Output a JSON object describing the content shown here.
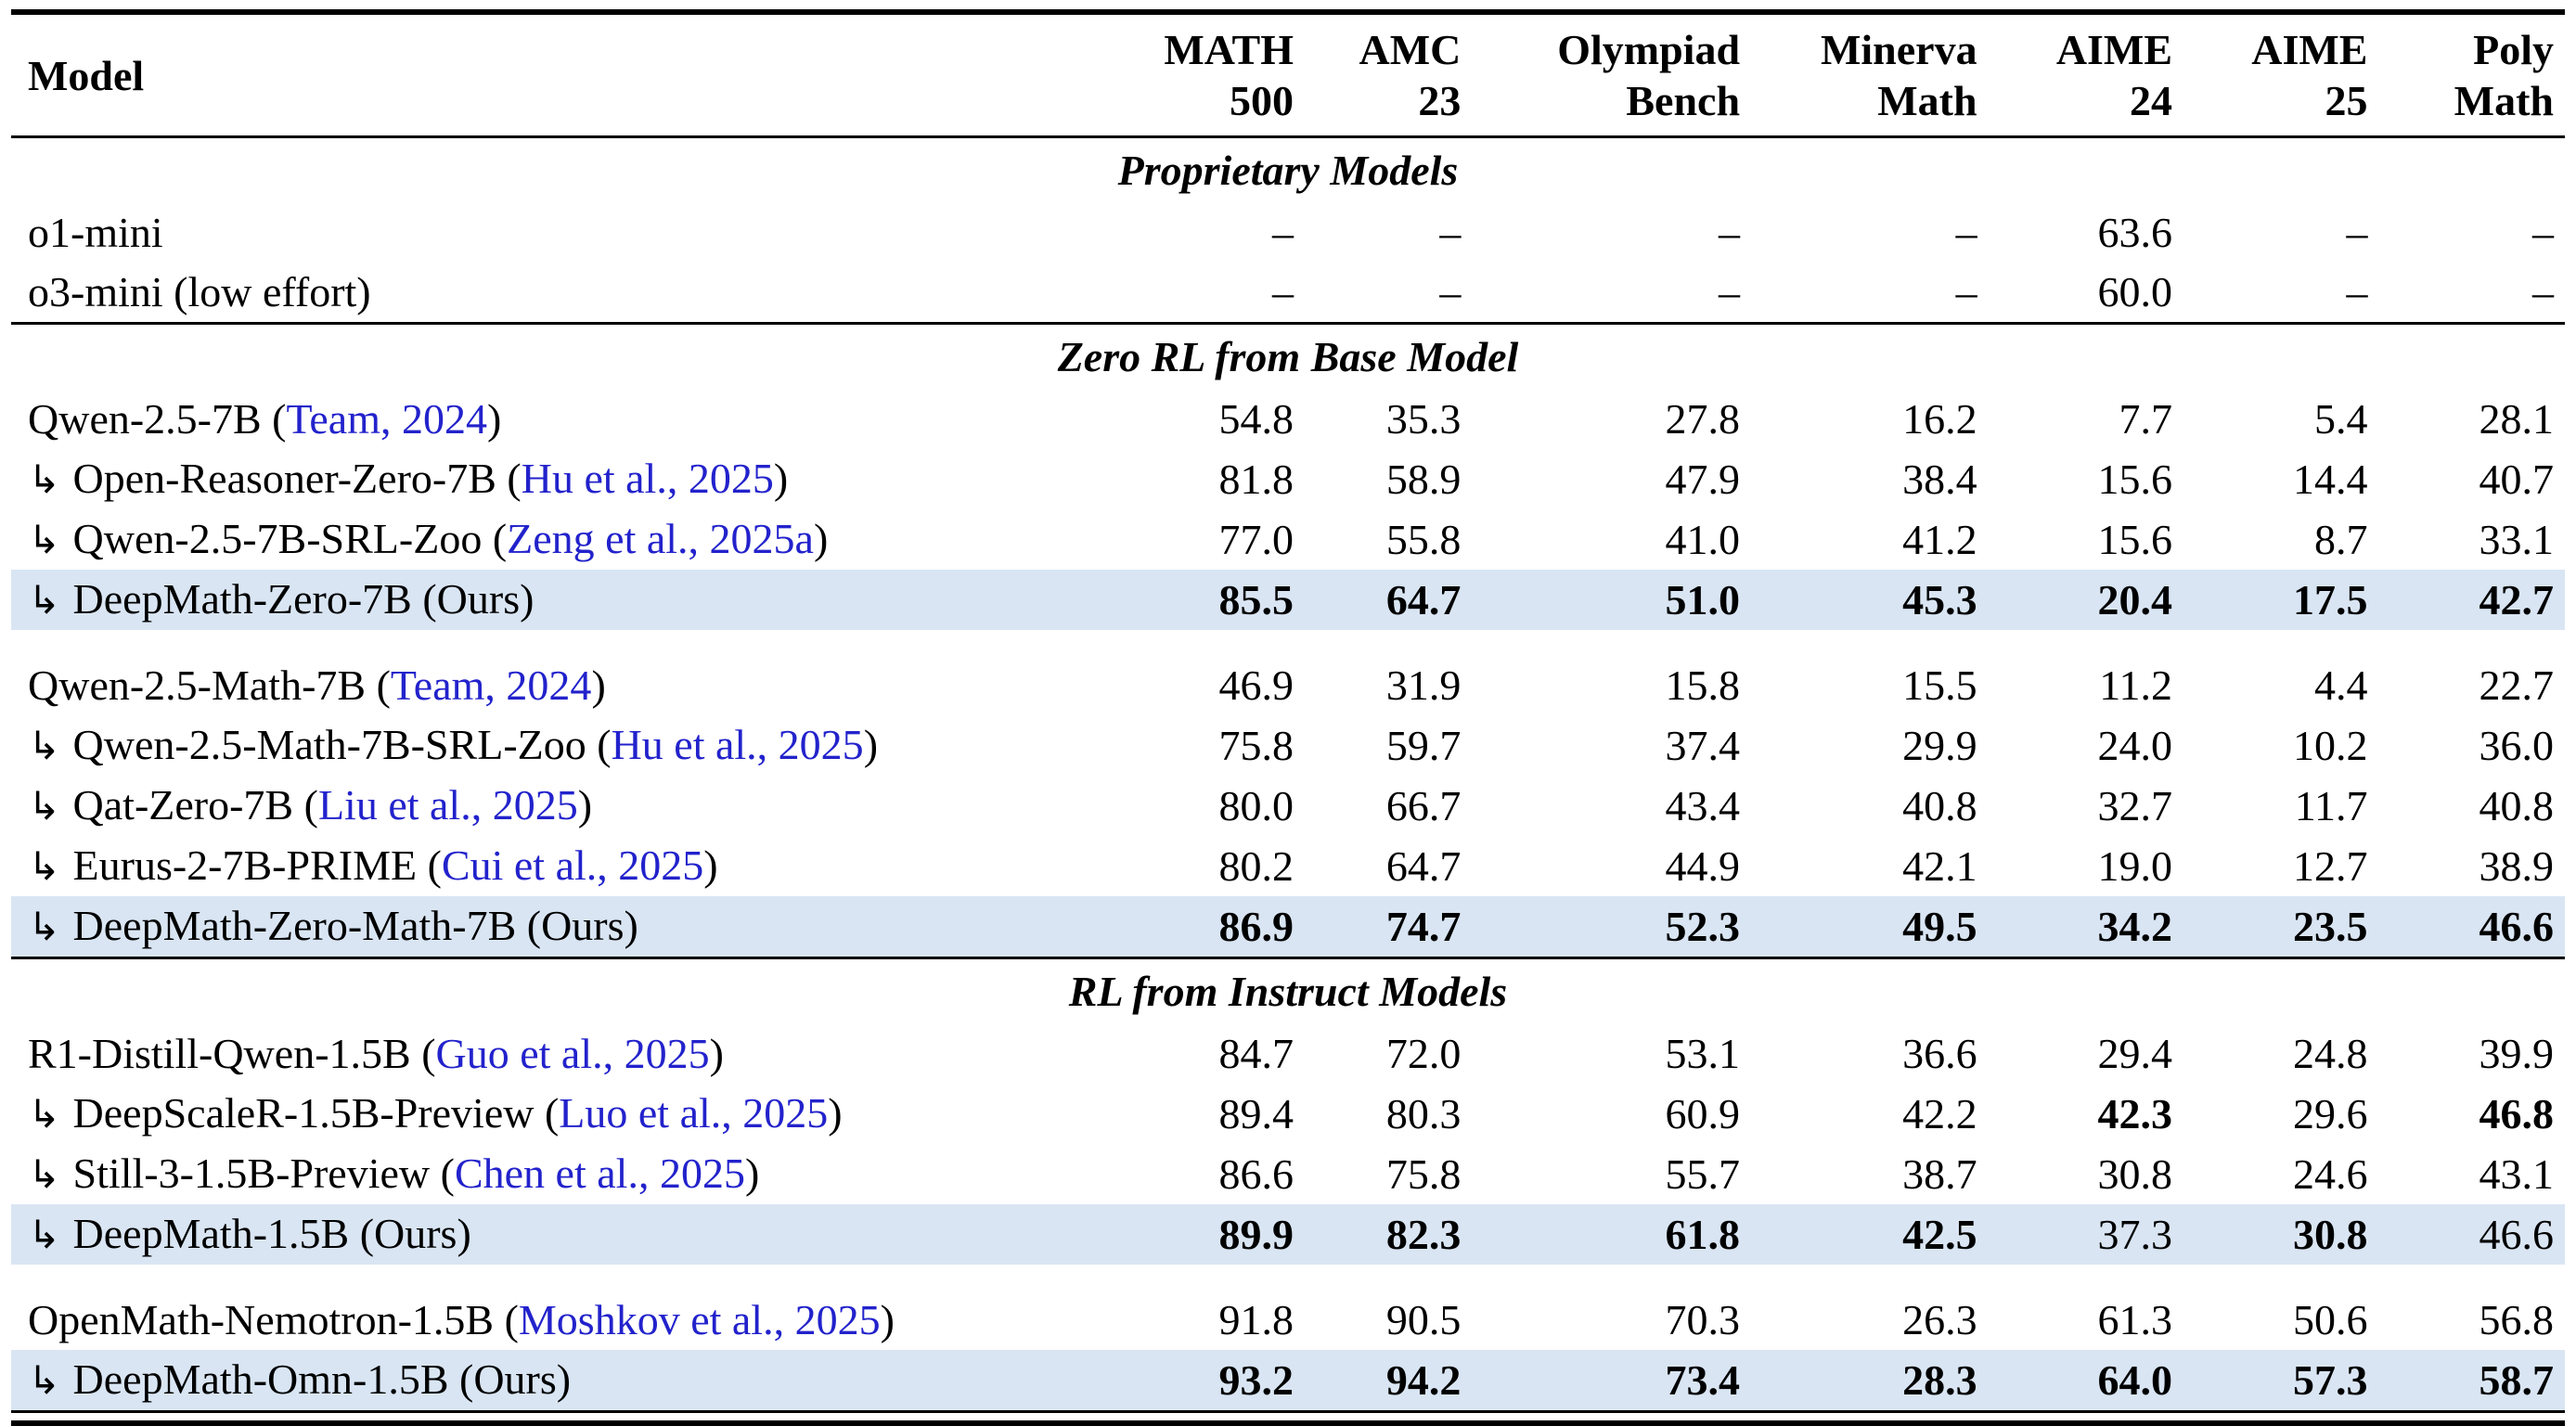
{
  "colors": {
    "background": "#ffffff",
    "text": "#000000",
    "rule": "#000000",
    "highlight_row": "#d9e5f3",
    "citation_link": "#2222cc"
  },
  "icons": {
    "indent_arrow": "↳"
  },
  "header": {
    "model_label": "Model",
    "columns": [
      {
        "line1": "MATH",
        "line2": "500"
      },
      {
        "line1": "AMC",
        "line2": "23"
      },
      {
        "line1": "Olympiad",
        "line2": "Bench"
      },
      {
        "line1": "Minerva",
        "line2": "Math"
      },
      {
        "line1": "AIME",
        "line2": "24"
      },
      {
        "line1": "AIME",
        "line2": "25"
      },
      {
        "line1": "Poly",
        "line2": "Math"
      }
    ]
  },
  "sections": [
    {
      "title": "Proprietary Models",
      "groups": [
        {
          "rows": [
            {
              "indent": false,
              "highlight": false,
              "model": [
                {
                  "text": "o1-mini"
                }
              ],
              "values": [
                {
                  "v": "–"
                },
                {
                  "v": "–"
                },
                {
                  "v": "–"
                },
                {
                  "v": "–"
                },
                {
                  "v": "63.6"
                },
                {
                  "v": "–"
                },
                {
                  "v": "–"
                }
              ]
            },
            {
              "indent": false,
              "highlight": false,
              "model": [
                {
                  "text": "o3-mini (low effort)"
                }
              ],
              "values": [
                {
                  "v": "–"
                },
                {
                  "v": "–"
                },
                {
                  "v": "–"
                },
                {
                  "v": "–"
                },
                {
                  "v": "60.0"
                },
                {
                  "v": "–"
                },
                {
                  "v": "–"
                }
              ]
            }
          ]
        }
      ]
    },
    {
      "title": "Zero RL from Base Model",
      "groups": [
        {
          "rows": [
            {
              "indent": false,
              "highlight": false,
              "model": [
                {
                  "text": "Qwen-2.5-7B ("
                },
                {
                  "text": "Team, 2024",
                  "link": true
                },
                {
                  "text": ")"
                }
              ],
              "values": [
                {
                  "v": "54.8"
                },
                {
                  "v": "35.3"
                },
                {
                  "v": "27.8"
                },
                {
                  "v": "16.2"
                },
                {
                  "v": "7.7"
                },
                {
                  "v": "5.4"
                },
                {
                  "v": "28.1"
                }
              ]
            },
            {
              "indent": true,
              "highlight": false,
              "model": [
                {
                  "text": "Open-Reasoner-Zero-7B ("
                },
                {
                  "text": "Hu et al., 2025",
                  "link": true
                },
                {
                  "text": ")"
                }
              ],
              "values": [
                {
                  "v": "81.8"
                },
                {
                  "v": "58.9"
                },
                {
                  "v": "47.9"
                },
                {
                  "v": "38.4"
                },
                {
                  "v": "15.6"
                },
                {
                  "v": "14.4"
                },
                {
                  "v": "40.7"
                }
              ]
            },
            {
              "indent": true,
              "highlight": false,
              "model": [
                {
                  "text": "Qwen-2.5-7B-SRL-Zoo ("
                },
                {
                  "text": "Zeng et al., 2025a",
                  "link": true
                },
                {
                  "text": ")"
                }
              ],
              "values": [
                {
                  "v": "77.0"
                },
                {
                  "v": "55.8"
                },
                {
                  "v": "41.0"
                },
                {
                  "v": "41.2"
                },
                {
                  "v": "15.6"
                },
                {
                  "v": "8.7"
                },
                {
                  "v": "33.1"
                }
              ]
            },
            {
              "indent": true,
              "highlight": true,
              "model": [
                {
                  "text": "DeepMath-Zero-7B (Ours)"
                }
              ],
              "values": [
                {
                  "v": "85.5",
                  "b": true
                },
                {
                  "v": "64.7",
                  "b": true
                },
                {
                  "v": "51.0",
                  "b": true
                },
                {
                  "v": "45.3",
                  "b": true
                },
                {
                  "v": "20.4",
                  "b": true
                },
                {
                  "v": "17.5",
                  "b": true
                },
                {
                  "v": "42.7",
                  "b": true
                }
              ]
            }
          ]
        },
        {
          "rows": [
            {
              "indent": false,
              "highlight": false,
              "model": [
                {
                  "text": "Qwen-2.5-Math-7B ("
                },
                {
                  "text": "Team, 2024",
                  "link": true
                },
                {
                  "text": ")"
                }
              ],
              "values": [
                {
                  "v": "46.9"
                },
                {
                  "v": "31.9"
                },
                {
                  "v": "15.8"
                },
                {
                  "v": "15.5"
                },
                {
                  "v": "11.2"
                },
                {
                  "v": "4.4"
                },
                {
                  "v": "22.7"
                }
              ]
            },
            {
              "indent": true,
              "highlight": false,
              "model": [
                {
                  "text": "Qwen-2.5-Math-7B-SRL-Zoo ("
                },
                {
                  "text": "Hu et al., 2025",
                  "link": true
                },
                {
                  "text": ")"
                }
              ],
              "values": [
                {
                  "v": "75.8"
                },
                {
                  "v": "59.7"
                },
                {
                  "v": "37.4"
                },
                {
                  "v": "29.9"
                },
                {
                  "v": "24.0"
                },
                {
                  "v": "10.2"
                },
                {
                  "v": "36.0"
                }
              ]
            },
            {
              "indent": true,
              "highlight": false,
              "model": [
                {
                  "text": "Qat-Zero-7B ("
                },
                {
                  "text": "Liu et al., 2025",
                  "link": true
                },
                {
                  "text": ")"
                }
              ],
              "values": [
                {
                  "v": "80.0"
                },
                {
                  "v": "66.7"
                },
                {
                  "v": "43.4"
                },
                {
                  "v": "40.8"
                },
                {
                  "v": "32.7"
                },
                {
                  "v": "11.7"
                },
                {
                  "v": "40.8"
                }
              ]
            },
            {
              "indent": true,
              "highlight": false,
              "model": [
                {
                  "text": "Eurus-2-7B-PRIME ("
                },
                {
                  "text": "Cui et al., 2025",
                  "link": true
                },
                {
                  "text": ")"
                }
              ],
              "values": [
                {
                  "v": "80.2"
                },
                {
                  "v": "64.7"
                },
                {
                  "v": "44.9"
                },
                {
                  "v": "42.1"
                },
                {
                  "v": "19.0"
                },
                {
                  "v": "12.7"
                },
                {
                  "v": "38.9"
                }
              ]
            },
            {
              "indent": true,
              "highlight": true,
              "model": [
                {
                  "text": "DeepMath-Zero-Math-7B (Ours)"
                }
              ],
              "values": [
                {
                  "v": "86.9",
                  "b": true
                },
                {
                  "v": "74.7",
                  "b": true
                },
                {
                  "v": "52.3",
                  "b": true
                },
                {
                  "v": "49.5",
                  "b": true
                },
                {
                  "v": "34.2",
                  "b": true
                },
                {
                  "v": "23.5",
                  "b": true
                },
                {
                  "v": "46.6",
                  "b": true
                }
              ]
            }
          ]
        }
      ]
    },
    {
      "title": "RL from Instruct Models",
      "groups": [
        {
          "rows": [
            {
              "indent": false,
              "highlight": false,
              "model": [
                {
                  "text": "R1-Distill-Qwen-1.5B ("
                },
                {
                  "text": "Guo et al., 2025",
                  "link": true
                },
                {
                  "text": ")"
                }
              ],
              "values": [
                {
                  "v": "84.7"
                },
                {
                  "v": "72.0"
                },
                {
                  "v": "53.1"
                },
                {
                  "v": "36.6"
                },
                {
                  "v": "29.4"
                },
                {
                  "v": "24.8"
                },
                {
                  "v": "39.9"
                }
              ]
            },
            {
              "indent": true,
              "highlight": false,
              "model": [
                {
                  "text": "DeepScaleR-1.5B-Preview ("
                },
                {
                  "text": "Luo et al., 2025",
                  "link": true
                },
                {
                  "text": ")"
                }
              ],
              "values": [
                {
                  "v": "89.4"
                },
                {
                  "v": "80.3"
                },
                {
                  "v": "60.9"
                },
                {
                  "v": "42.2"
                },
                {
                  "v": "42.3",
                  "b": true
                },
                {
                  "v": "29.6"
                },
                {
                  "v": "46.8",
                  "b": true
                }
              ]
            },
            {
              "indent": true,
              "highlight": false,
              "model": [
                {
                  "text": "Still-3-1.5B-Preview ("
                },
                {
                  "text": "Chen et al., 2025",
                  "link": true
                },
                {
                  "text": ")"
                }
              ],
              "values": [
                {
                  "v": "86.6"
                },
                {
                  "v": "75.8"
                },
                {
                  "v": "55.7"
                },
                {
                  "v": "38.7"
                },
                {
                  "v": "30.8"
                },
                {
                  "v": "24.6"
                },
                {
                  "v": "43.1"
                }
              ]
            },
            {
              "indent": true,
              "highlight": true,
              "model": [
                {
                  "text": "DeepMath-1.5B (Ours)"
                }
              ],
              "values": [
                {
                  "v": "89.9",
                  "b": true
                },
                {
                  "v": "82.3",
                  "b": true
                },
                {
                  "v": "61.8",
                  "b": true
                },
                {
                  "v": "42.5",
                  "b": true
                },
                {
                  "v": "37.3"
                },
                {
                  "v": "30.8",
                  "b": true
                },
                {
                  "v": "46.6"
                }
              ]
            }
          ]
        },
        {
          "rows": [
            {
              "indent": false,
              "highlight": false,
              "model": [
                {
                  "text": "OpenMath-Nemotron-1.5B ("
                },
                {
                  "text": "Moshkov et al., 2025",
                  "link": true
                },
                {
                  "text": ")"
                }
              ],
              "values": [
                {
                  "v": "91.8"
                },
                {
                  "v": "90.5"
                },
                {
                  "v": "70.3"
                },
                {
                  "v": "26.3"
                },
                {
                  "v": "61.3"
                },
                {
                  "v": "50.6"
                },
                {
                  "v": "56.8"
                }
              ]
            },
            {
              "indent": true,
              "highlight": true,
              "model": [
                {
                  "text": "DeepMath-Omn-1.5B (Ours)"
                }
              ],
              "values": [
                {
                  "v": "93.2",
                  "b": true
                },
                {
                  "v": "94.2",
                  "b": true
                },
                {
                  "v": "73.4",
                  "b": true
                },
                {
                  "v": "28.3",
                  "b": true
                },
                {
                  "v": "64.0",
                  "b": true
                },
                {
                  "v": "57.3",
                  "b": true
                },
                {
                  "v": "58.7",
                  "b": true
                }
              ]
            }
          ]
        }
      ]
    }
  ]
}
